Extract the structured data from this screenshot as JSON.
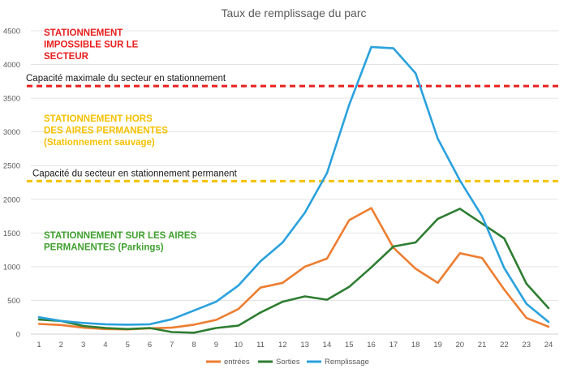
{
  "chart_data": {
    "type": "line",
    "title": "Taux de remplissage du parc",
    "x": [
      1,
      2,
      3,
      4,
      5,
      6,
      7,
      8,
      9,
      10,
      11,
      12,
      13,
      14,
      15,
      16,
      17,
      18,
      19,
      20,
      21,
      22,
      23,
      24
    ],
    "ylim": [
      0,
      4500
    ],
    "yticks": [
      0,
      500,
      1000,
      1500,
      2000,
      2500,
      3000,
      3500,
      4000,
      4500
    ],
    "grid": true,
    "legend_position": "bottom",
    "series": [
      {
        "name": "entrées",
        "color": "#ed7d31",
        "values": [
          150,
          135,
          95,
          75,
          70,
          85,
          95,
          140,
          210,
          370,
          690,
          760,
          1000,
          1120,
          1690,
          1870,
          1280,
          970,
          760,
          1200,
          1130,
          660,
          240,
          110
        ]
      },
      {
        "name": "Sorties",
        "color": "#2e7d32",
        "values": [
          215,
          195,
          120,
          90,
          75,
          90,
          30,
          20,
          90,
          125,
          320,
          480,
          560,
          510,
          700,
          990,
          1300,
          1360,
          1710,
          1860,
          1640,
          1420,
          750,
          385
        ]
      },
      {
        "name": "Remplissage",
        "color": "#2aa1dd",
        "values": [
          250,
          195,
          165,
          145,
          140,
          145,
          220,
          350,
          480,
          720,
          1080,
          1360,
          1800,
          2390,
          3400,
          4260,
          4240,
          3870,
          2900,
          2280,
          1750,
          980,
          450,
          180
        ]
      }
    ],
    "reference_lines": [
      {
        "label": "Capacité maximale du secteur en stationnement",
        "value": 3680,
        "color": "#e8201f"
      },
      {
        "label": "Capacité du secteur en stationnement permanent",
        "value": 2270,
        "color": "#f5c100"
      }
    ],
    "annotations": [
      {
        "lines": [
          "STATIONNEMENT",
          "IMPOSSIBLE SUR LE",
          "SECTEUR"
        ],
        "color": "#e8201f"
      },
      {
        "lines": [
          "STATIONNEMENT HORS",
          "DES AIRES PERMANENTES",
          "(Stationnement sauvage)"
        ],
        "color": "#f5c100"
      },
      {
        "lines": [
          "STATIONNEMENT SUR LES AIRES",
          "PERMANENTES (Parkings)"
        ],
        "color": "#3fa02e"
      }
    ]
  }
}
